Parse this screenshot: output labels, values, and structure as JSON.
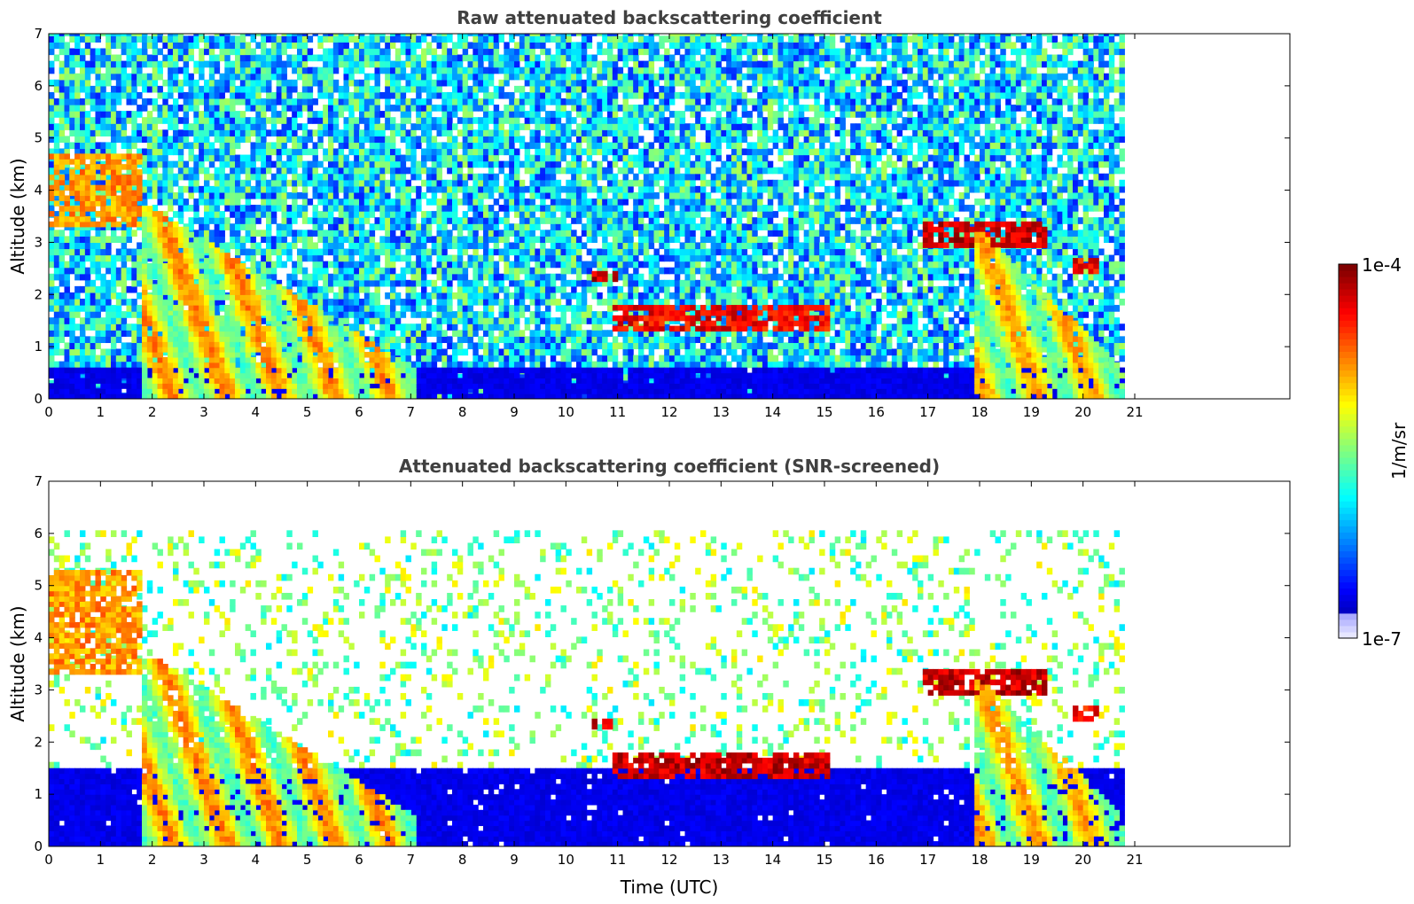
{
  "chart_data": [
    {
      "type": "heatmap",
      "title": "Raw attenuated backscattering coefficient",
      "xlabel": "",
      "ylabel": "Altitude (km)",
      "xlim": [
        0,
        24
      ],
      "ylim": [
        0,
        7
      ],
      "x_ticks": [
        0,
        1,
        2,
        3,
        4,
        5,
        6,
        7,
        8,
        9,
        10,
        11,
        12,
        13,
        14,
        15,
        16,
        17,
        18,
        19,
        20,
        21
      ],
      "y_ticks": [
        0,
        1,
        2,
        3,
        4,
        5,
        6,
        7
      ],
      "data_end_time": 20.8,
      "features": [
        {
          "kind": "background-noise",
          "t0": 0,
          "t1": 20.8,
          "z0": 0,
          "z1": 7,
          "level": 0.35
        },
        {
          "kind": "boundary-layer",
          "t0": 0,
          "t1": 20.8,
          "z0": 0,
          "z1": 0.6,
          "level": 0.08
        },
        {
          "kind": "cloud",
          "t0": 0.0,
          "t1": 1.8,
          "z0": 3.3,
          "z1": 4.6,
          "level": 0.8
        },
        {
          "kind": "precipitation-fall",
          "t0": 1.8,
          "t1": 7.0,
          "z0": 0,
          "z1": 3.7,
          "level": 0.75
        },
        {
          "kind": "cloud",
          "t0": 10.5,
          "t1": 10.9,
          "z0": 2.25,
          "z1": 2.4,
          "level": 1.0
        },
        {
          "kind": "cloud",
          "t0": 10.9,
          "t1": 15.0,
          "z0": 1.3,
          "z1": 1.8,
          "level": 0.95
        },
        {
          "kind": "cloud",
          "t0": 16.9,
          "t1": 19.3,
          "z0": 2.9,
          "z1": 3.4,
          "level": 1.0
        },
        {
          "kind": "precipitation-fall",
          "t0": 17.9,
          "t1": 20.8,
          "z0": 0,
          "z1": 3.2,
          "level": 0.7
        },
        {
          "kind": "cloud",
          "t0": 19.8,
          "t1": 20.3,
          "z0": 2.4,
          "z1": 2.7,
          "level": 0.95
        }
      ]
    },
    {
      "type": "heatmap",
      "title": "Attenuated backscattering coefficient (SNR-screened)",
      "xlabel": "Time (UTC)",
      "ylabel": "Altitude (km)",
      "xlim": [
        0,
        24
      ],
      "ylim": [
        0,
        7
      ],
      "x_ticks": [
        0,
        1,
        2,
        3,
        4,
        5,
        6,
        7,
        8,
        9,
        10,
        11,
        12,
        13,
        14,
        15,
        16,
        17,
        18,
        19,
        20,
        21
      ],
      "y_ticks": [
        0,
        1,
        2,
        3,
        4,
        5,
        6,
        7
      ],
      "data_end_time": 20.8,
      "features": [
        {
          "kind": "sparse-noise",
          "t0": 0,
          "t1": 20.8,
          "z0": 1.5,
          "z1": 6.0,
          "level": 0.5
        },
        {
          "kind": "boundary-layer",
          "t0": 0,
          "t1": 20.8,
          "z0": 0,
          "z1": 1.5,
          "level": 0.08
        },
        {
          "kind": "cloud",
          "t0": 0.0,
          "t1": 1.8,
          "z0": 3.3,
          "z1": 5.2,
          "level": 0.8
        },
        {
          "kind": "precipitation-fall",
          "t0": 1.8,
          "t1": 7.0,
          "z0": 0,
          "z1": 3.7,
          "level": 0.75
        },
        {
          "kind": "cloud",
          "t0": 10.5,
          "t1": 10.9,
          "z0": 2.25,
          "z1": 2.4,
          "level": 1.0
        },
        {
          "kind": "cloud",
          "t0": 10.9,
          "t1": 15.0,
          "z0": 1.3,
          "z1": 1.8,
          "level": 1.0
        },
        {
          "kind": "cloud",
          "t0": 16.9,
          "t1": 19.3,
          "z0": 2.9,
          "z1": 3.4,
          "level": 1.0
        },
        {
          "kind": "precipitation-fall",
          "t0": 17.9,
          "t1": 20.8,
          "z0": 0,
          "z1": 3.2,
          "level": 0.7
        },
        {
          "kind": "cloud",
          "t0": 19.8,
          "t1": 20.3,
          "z0": 2.4,
          "z1": 2.7,
          "level": 0.95
        }
      ]
    }
  ],
  "colorbar": {
    "label": "1/m/sr",
    "min_label": "1e-7",
    "max_label": "1e-4",
    "colormap": "jet"
  }
}
